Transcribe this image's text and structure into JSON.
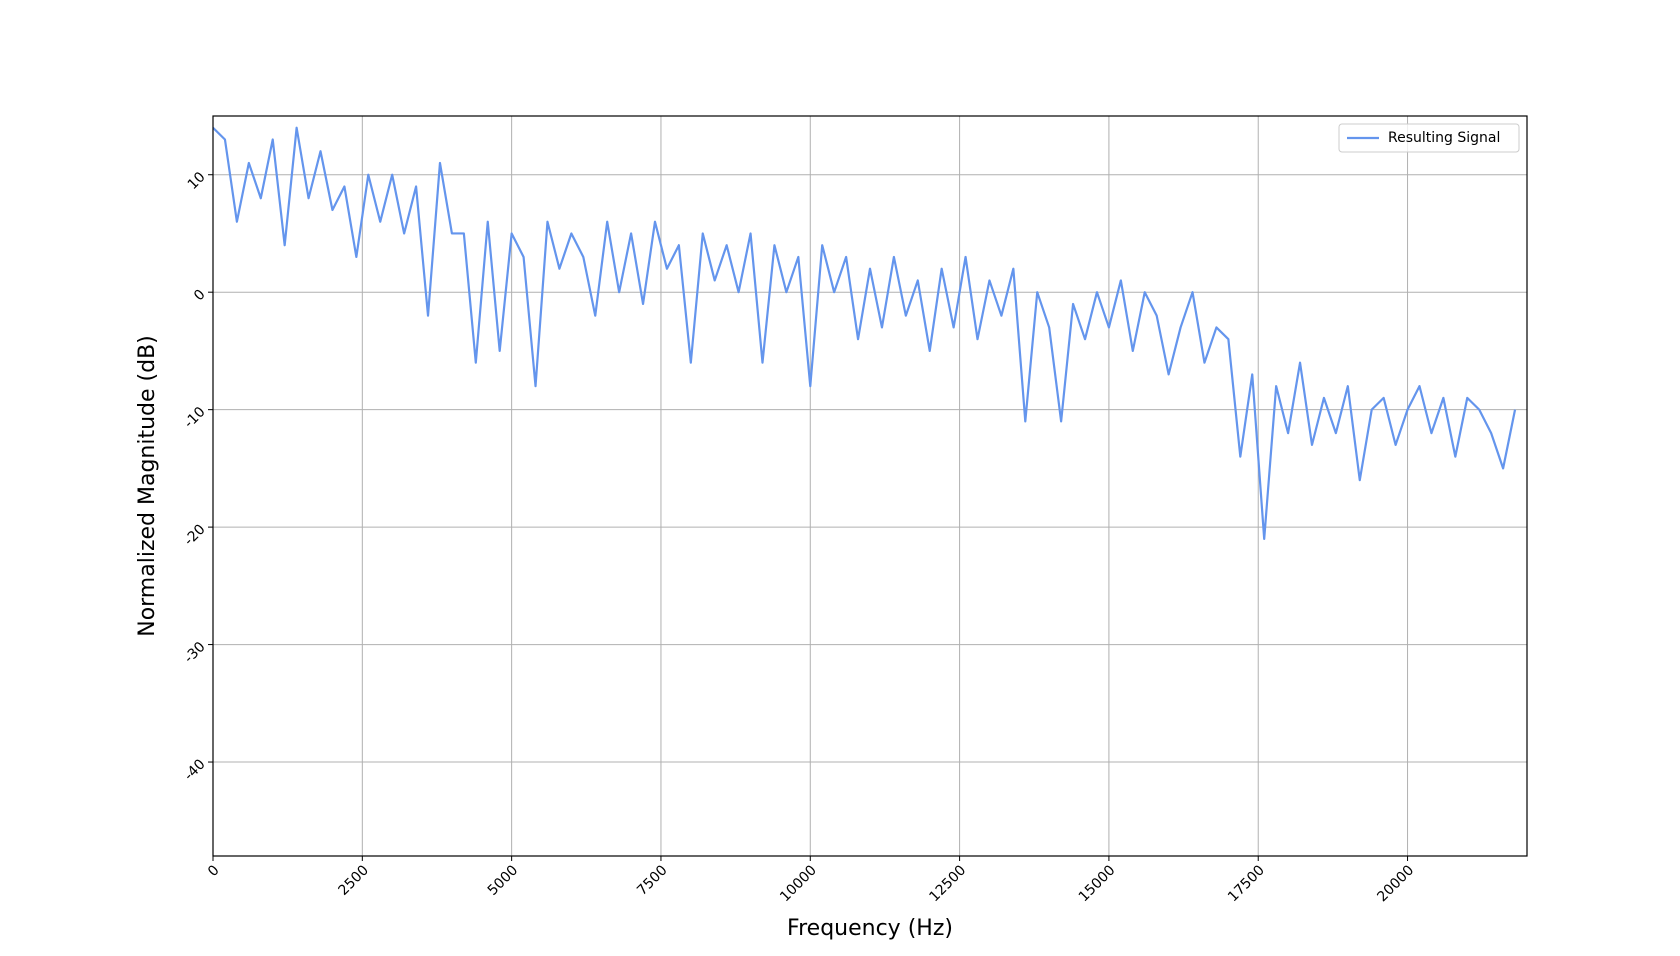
{
  "chart_data": {
    "type": "line",
    "xlabel": "Frequency (Hz)",
    "ylabel": "Normalized Magnitude (dB)",
    "x": [
      0,
      200,
      400,
      600,
      800,
      1000,
      1200,
      1400,
      1600,
      1800,
      2000,
      2200,
      2400,
      2600,
      2800,
      3000,
      3200,
      3400,
      3600,
      3800,
      4000,
      4200,
      4400,
      4600,
      4800,
      5000,
      5200,
      5400,
      5600,
      5800,
      6000,
      6200,
      6400,
      6600,
      6800,
      7000,
      7200,
      7400,
      7600,
      7800,
      8000,
      8200,
      8400,
      8600,
      8800,
      9000,
      9200,
      9400,
      9600,
      9800,
      10000,
      10200,
      10400,
      10600,
      10800,
      11000,
      11200,
      11400,
      11600,
      11800,
      12000,
      12200,
      12400,
      12600,
      12800,
      13000,
      13200,
      13400,
      13600,
      13800,
      14000,
      14200,
      14400,
      14600,
      14800,
      15000,
      15200,
      15400,
      15600,
      15800,
      16000,
      16200,
      16400,
      16600,
      16800,
      17000,
      17200,
      17400,
      17600,
      17800,
      18000,
      18200,
      18400,
      18600,
      18800,
      19000,
      19200,
      19400,
      19600,
      19800,
      20000,
      20200,
      20400,
      20600,
      20800,
      21000,
      21200,
      21400,
      21600,
      21800
    ],
    "series": [
      {
        "name": "Resulting Signal",
        "color": "#6495ed",
        "values": [
          14,
          13,
          6,
          11,
          8,
          13,
          4,
          14,
          8,
          12,
          7,
          9,
          3,
          10,
          6,
          10,
          5,
          9,
          -2,
          11,
          5,
          5,
          -6,
          6,
          -5,
          5,
          3,
          -8,
          6,
          2,
          5,
          3,
          -2,
          6,
          0,
          5,
          -1,
          6,
          2,
          4,
          -6,
          5,
          1,
          4,
          0,
          5,
          -6,
          4,
          0,
          3,
          -8,
          4,
          0,
          3,
          -4,
          2,
          -3,
          3,
          -2,
          1,
          -5,
          2,
          -3,
          3,
          -4,
          1,
          -2,
          2,
          -11,
          0,
          -3,
          -11,
          -1,
          -4,
          0,
          -3,
          1,
          -5,
          0,
          -2,
          -7,
          -3,
          0,
          -6,
          -3,
          -4,
          -14,
          -7,
          -21,
          -8,
          -12,
          -6,
          -13,
          -9,
          -12,
          -8,
          -16,
          -10,
          -9,
          -13,
          -10,
          -8,
          -12,
          -9,
          -14,
          -9,
          -10,
          -12,
          -15,
          -10
        ]
      }
    ],
    "xlim": [
      0,
      22000
    ],
    "ylim": [
      -48,
      15
    ],
    "xticks": [
      0,
      2500,
      5000,
      7500,
      10000,
      12500,
      15000,
      17500,
      20000
    ],
    "yticks": [
      -40,
      -30,
      -20,
      -10,
      0,
      10
    ],
    "grid": true,
    "legend": "upper right"
  }
}
